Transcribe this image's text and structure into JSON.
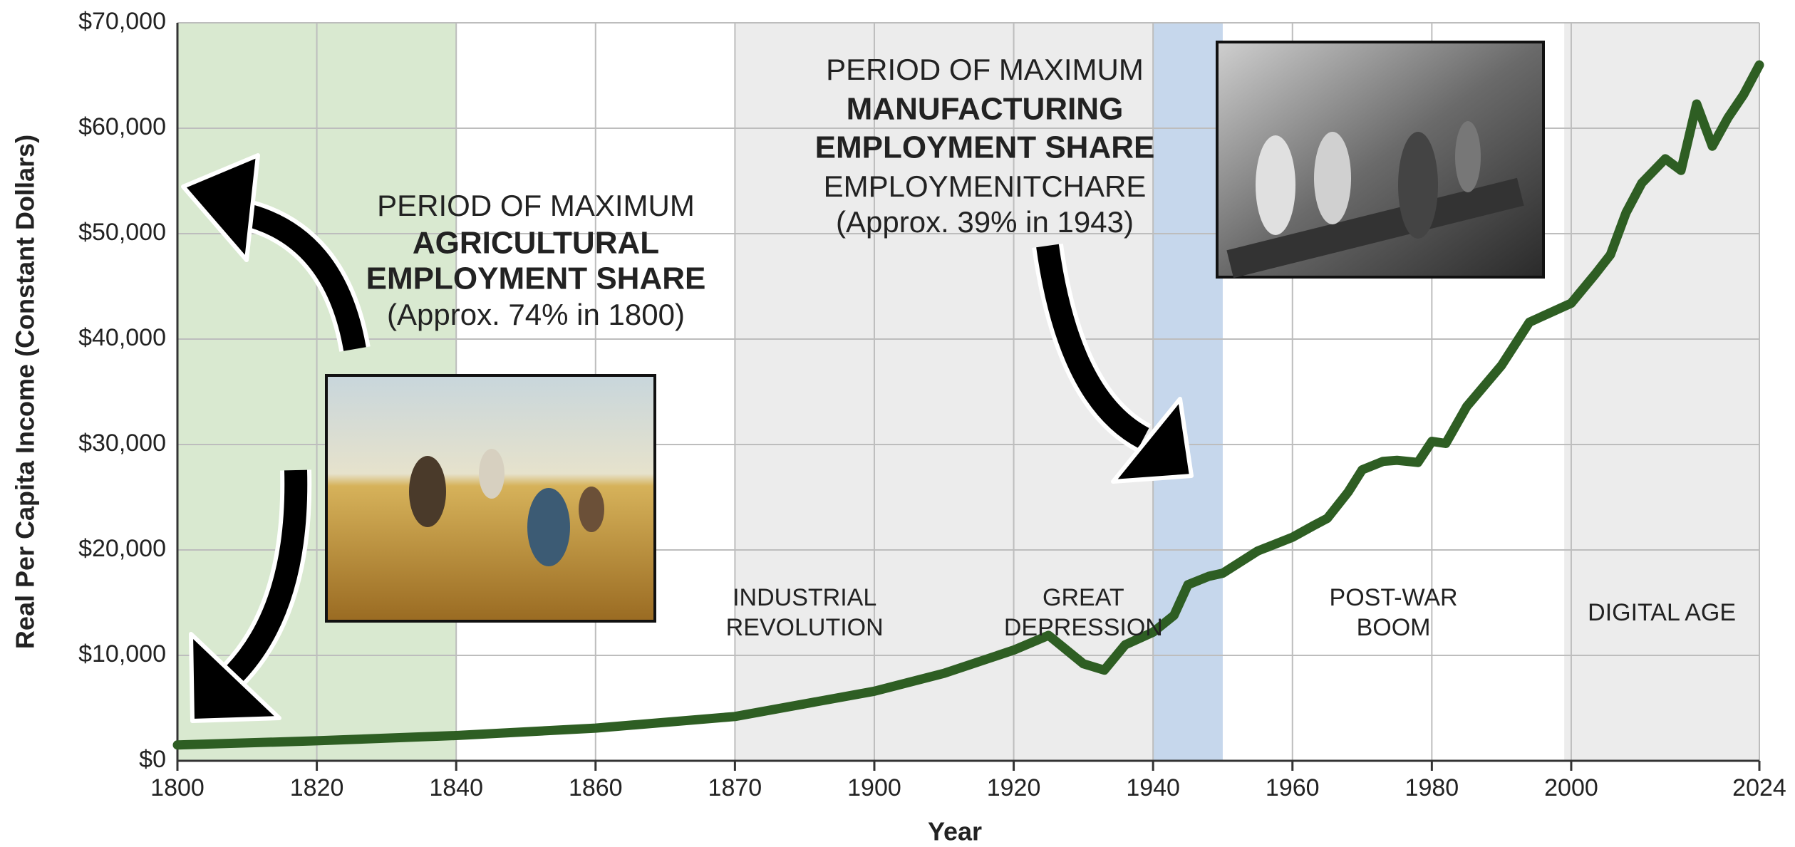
{
  "chart_data": {
    "type": "line",
    "x_label": "Year",
    "y_label": "Real Per Capita Income (Constant Dollars)",
    "xlim": [
      1800,
      2024
    ],
    "xticks": [
      1800,
      1820,
      1840,
      1860,
      1870,
      1900,
      1920,
      1940,
      1960,
      1980,
      2000,
      2024
    ],
    "ylim": [
      0,
      70000
    ],
    "yticks": [
      {
        "value": 0,
        "label": "$0"
      },
      {
        "value": 10000,
        "label": "$10,000"
      },
      {
        "value": 20000,
        "label": "$20,000"
      },
      {
        "value": 30000,
        "label": "$30,000"
      },
      {
        "value": 40000,
        "label": "$40,000"
      },
      {
        "value": 50000,
        "label": "$50,000"
      },
      {
        "value": 60000,
        "label": "$60,000"
      },
      {
        "value": 70000,
        "label": "$70,000"
      }
    ],
    "grid": true,
    "x": [
      1800,
      1820,
      1840,
      1860,
      1870,
      1900,
      1910,
      1920,
      1925,
      1930,
      1933,
      1936,
      1940,
      1943,
      1945,
      1948,
      1950,
      1955,
      1960,
      1963,
      1965,
      1968,
      1970,
      1973,
      1975,
      1978,
      1980,
      1982,
      1985,
      1990,
      1994,
      2000,
      2003,
      2005,
      2007,
      2009,
      2012,
      2014,
      2016,
      2018,
      2020,
      2022,
      2024
    ],
    "series": [
      {
        "color": "#2e5e23",
        "values": [
          1500,
          1900,
          2400,
          3100,
          4200,
          6600,
          8300,
          10500,
          11900,
          9200,
          8600,
          11000,
          12200,
          13800,
          16700,
          17500,
          17800,
          19900,
          21200,
          22300,
          23000,
          25500,
          27600,
          28400,
          28500,
          28300,
          30300,
          30100,
          33600,
          37500,
          41600,
          43400,
          46100,
          48000,
          52000,
          54800,
          57100,
          56000,
          62300,
          58300,
          61000,
          63200,
          66000
        ]
      }
    ],
    "periods": [
      {
        "start": 1800,
        "end": 1840,
        "color": "#d9e9d0"
      },
      {
        "start": 1870,
        "end": 1900,
        "color": "#ececec",
        "label": [
          "INDUSTRIAL",
          "REVOLUTION"
        ]
      },
      {
        "start": 1900,
        "end": 1920,
        "color": "#ececec"
      },
      {
        "start": 1920,
        "end": 1940,
        "color": "#ececec",
        "label": [
          "GREAT",
          "DEPRESSION"
        ]
      },
      {
        "start": 1940,
        "end": 1950,
        "color": "#c6d7ec"
      },
      {
        "start": 1950,
        "end": 1999,
        "color": "#ffffff",
        "label": [
          "POST-WAR",
          "BOOM"
        ]
      },
      {
        "start": 1999,
        "end": 2024,
        "color": "#ececec",
        "label": [
          "DIGITAL AGE"
        ]
      }
    ],
    "annotations": [
      {
        "lines": [
          "PERIOD OF MAXIMUM",
          "AGRICULTURAL",
          "EMPLOYMENT SHARE",
          "(Approx. 74% in 1800)"
        ]
      },
      {
        "lines": [
          "PERIOD OF MAXIMUM",
          "MANUFACTURING",
          "EMPLOYMENT SHARE",
          "EMPLOYMENITCHARE",
          "(Approx. 39% in 1943)"
        ]
      }
    ]
  }
}
